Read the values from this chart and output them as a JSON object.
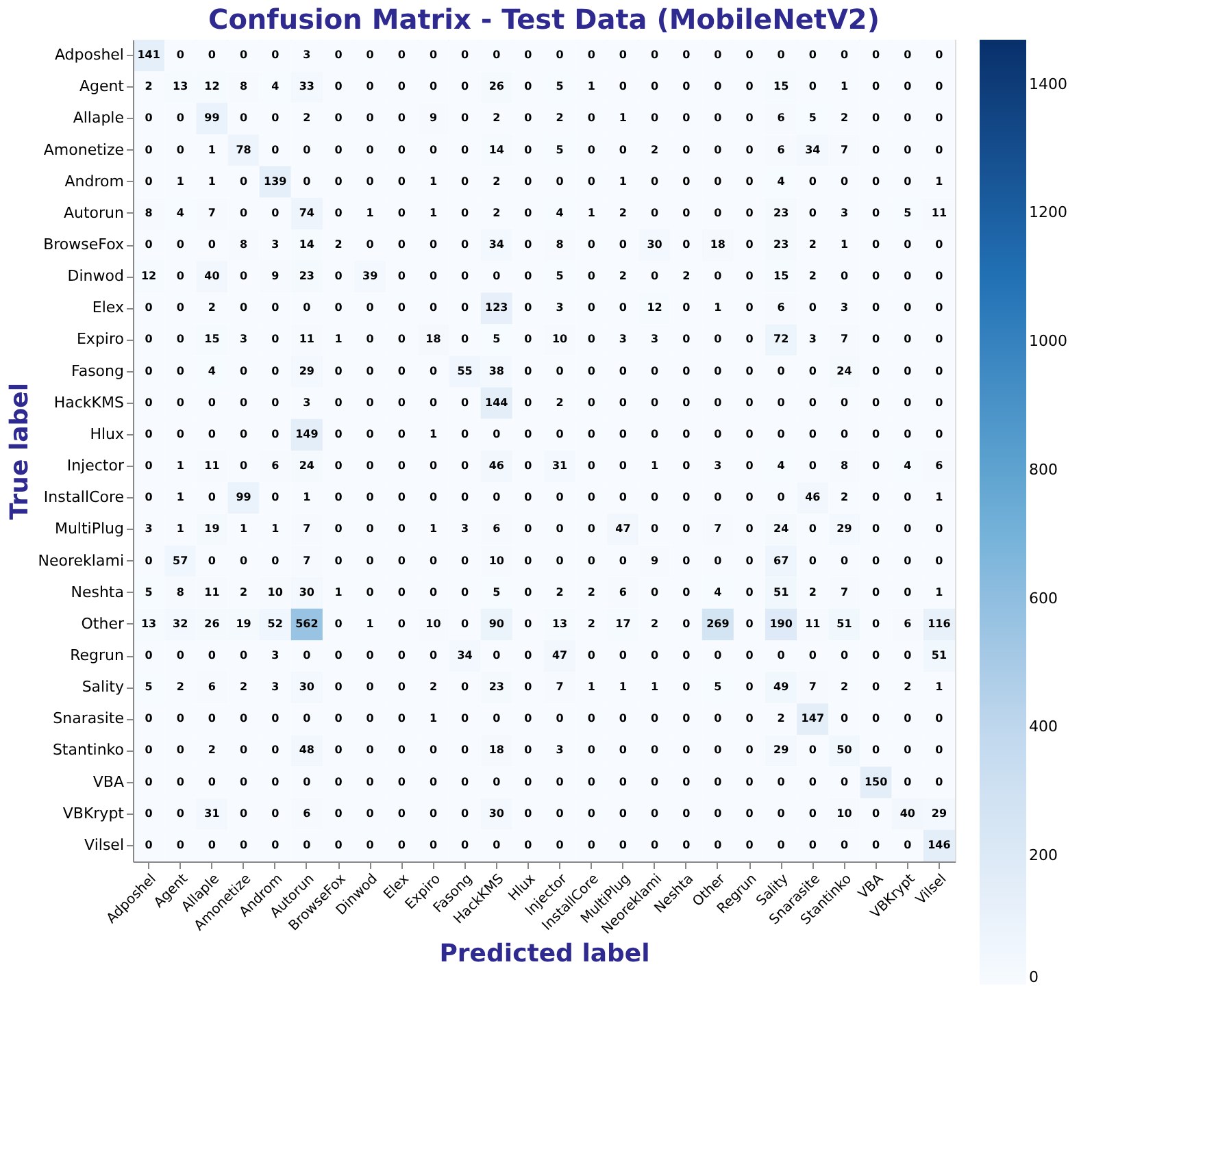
{
  "chart_data": {
    "type": "heatmap",
    "title": "Confusion Matrix - Test Data (MobileNetV2)",
    "xlabel": "Predicted label",
    "ylabel": "True label",
    "categories": [
      "Adposhel",
      "Agent",
      "Allaple",
      "Amonetize",
      "Androm",
      "Autorun",
      "BrowseFox",
      "Dinwod",
      "Elex",
      "Expiro",
      "Fasong",
      "HackKMS",
      "Hlux",
      "Injector",
      "InstallCore",
      "MultiPlug",
      "Neoreklami",
      "Neshta",
      "Other",
      "Regrun",
      "Sality",
      "Snarasite",
      "Stantinko",
      "VBA",
      "VBKrypt",
      "Vilsel"
    ],
    "y_categories": [
      "Adposhel",
      "Agent",
      "Allaple",
      "Amonetize",
      "Androm",
      "Autorun",
      "BrowseFox",
      "Dinwod",
      "Elex",
      "Expiro",
      "Fasong",
      "HackKMS",
      "Hlux",
      "Injector",
      "InstallCore",
      "MultiPlug",
      "Neoreklami",
      "Neshta",
      "Other",
      "Regrun",
      "Sality",
      "Snarasite",
      "Stantinko",
      "VBA",
      "VBKrypt",
      "Vilsel"
    ],
    "cells": [
      [
        141,
        0,
        0,
        0,
        0,
        3,
        0,
        0,
        0,
        0,
        0,
        0,
        0,
        0,
        0,
        0,
        0,
        0,
        0,
        0,
        0,
        0,
        0,
        0,
        0,
        0
      ],
      [
        2,
        13,
        12,
        8,
        4,
        33,
        0,
        0,
        0,
        0,
        0,
        26,
        0,
        5,
        1,
        0,
        0,
        0,
        0,
        0,
        15,
        0,
        1,
        0,
        0,
        0
      ],
      [
        0,
        0,
        99,
        0,
        0,
        2,
        0,
        0,
        0,
        9,
        0,
        2,
        0,
        2,
        0,
        1,
        0,
        0,
        0,
        0,
        6,
        5,
        2,
        0,
        0,
        0
      ],
      [
        0,
        0,
        1,
        78,
        0,
        0,
        0,
        0,
        0,
        0,
        0,
        14,
        0,
        5,
        0,
        0,
        2,
        0,
        0,
        0,
        6,
        34,
        7,
        0,
        0,
        0
      ],
      [
        0,
        1,
        1,
        0,
        139,
        0,
        0,
        0,
        0,
        1,
        0,
        2,
        0,
        0,
        0,
        1,
        0,
        0,
        0,
        0,
        4,
        0,
        0,
        0,
        0,
        1
      ],
      [
        8,
        4,
        7,
        0,
        0,
        74,
        0,
        1,
        0,
        1,
        0,
        2,
        0,
        4,
        1,
        2,
        0,
        0,
        0,
        0,
        23,
        0,
        3,
        0,
        5,
        11
      ],
      [
        0,
        0,
        0,
        8,
        3,
        14,
        2,
        0,
        0,
        0,
        0,
        34,
        0,
        8,
        0,
        0,
        30,
        0,
        18,
        0,
        23,
        2,
        1,
        0,
        0,
        0
      ],
      [
        12,
        0,
        40,
        0,
        9,
        23,
        0,
        39,
        0,
        0,
        0,
        0,
        0,
        5,
        0,
        2,
        0,
        2,
        0,
        0,
        15,
        2,
        0,
        0,
        0,
        0
      ],
      [
        0,
        0,
        2,
        0,
        0,
        0,
        0,
        0,
        0,
        0,
        0,
        123,
        0,
        3,
        0,
        0,
        12,
        0,
        1,
        0,
        6,
        0,
        3,
        0,
        0,
        0
      ],
      [
        0,
        0,
        15,
        3,
        0,
        11,
        1,
        0,
        0,
        18,
        0,
        5,
        0,
        10,
        0,
        3,
        3,
        0,
        0,
        0,
        72,
        3,
        7,
        0,
        0,
        0
      ],
      [
        0,
        0,
        4,
        0,
        0,
        29,
        0,
        0,
        0,
        0,
        55,
        38,
        0,
        0,
        0,
        0,
        0,
        0,
        0,
        0,
        0,
        0,
        24,
        0,
        0,
        0
      ],
      [
        0,
        0,
        0,
        0,
        0,
        3,
        0,
        0,
        0,
        0,
        0,
        144,
        0,
        2,
        0,
        0,
        0,
        0,
        0,
        0,
        0,
        0,
        0,
        0,
        0,
        0
      ],
      [
        0,
        0,
        0,
        0,
        0,
        149,
        0,
        0,
        0,
        1,
        0,
        0,
        0,
        0,
        0,
        0,
        0,
        0,
        0,
        0,
        0,
        0,
        0,
        0,
        0,
        0
      ],
      [
        0,
        1,
        11,
        0,
        6,
        24,
        0,
        0,
        0,
        0,
        0,
        46,
        0,
        31,
        0,
        0,
        1,
        0,
        3,
        0,
        4,
        0,
        8,
        0,
        4,
        6
      ],
      [
        0,
        1,
        0,
        99,
        0,
        1,
        0,
        0,
        0,
        0,
        0,
        0,
        0,
        0,
        0,
        0,
        0,
        0,
        0,
        0,
        0,
        46,
        2,
        0,
        0,
        1
      ],
      [
        3,
        1,
        19,
        1,
        1,
        7,
        0,
        0,
        0,
        1,
        3,
        6,
        0,
        0,
        0,
        47,
        0,
        0,
        7,
        0,
        24,
        0,
        29,
        0,
        0,
        0
      ],
      [
        0,
        57,
        0,
        0,
        0,
        7,
        0,
        0,
        0,
        0,
        0,
        10,
        0,
        0,
        0,
        0,
        9,
        0,
        0,
        0,
        67,
        0,
        0,
        0,
        0,
        0
      ],
      [
        5,
        8,
        11,
        2,
        10,
        30,
        1,
        0,
        0,
        0,
        0,
        5,
        0,
        2,
        2,
        6,
        0,
        0,
        4,
        0,
        51,
        2,
        7,
        0,
        0,
        1
      ],
      [
        13,
        32,
        26,
        19,
        52,
        562,
        0,
        1,
        0,
        10,
        0,
        90,
        0,
        13,
        2,
        17,
        2,
        0,
        269,
        0,
        190,
        11,
        51,
        0,
        6,
        116
      ],
      [
        0,
        0,
        0,
        0,
        3,
        0,
        0,
        0,
        0,
        0,
        34,
        0,
        0,
        47,
        0,
        0,
        0,
        0,
        0,
        0,
        0,
        0,
        0,
        0,
        0,
        51
      ],
      [
        5,
        2,
        6,
        2,
        3,
        30,
        0,
        0,
        0,
        2,
        0,
        23,
        0,
        7,
        1,
        1,
        1,
        0,
        5,
        0,
        49,
        7,
        2,
        0,
        2,
        1
      ],
      [
        0,
        0,
        0,
        0,
        0,
        0,
        0,
        0,
        0,
        1,
        0,
        0,
        0,
        0,
        0,
        0,
        0,
        0,
        0,
        0,
        2,
        147,
        0,
        0,
        0,
        0
      ],
      [
        0,
        0,
        2,
        0,
        0,
        48,
        0,
        0,
        0,
        0,
        0,
        18,
        0,
        3,
        0,
        0,
        0,
        0,
        0,
        0,
        29,
        0,
        50,
        0,
        0,
        0
      ],
      [
        0,
        0,
        0,
        0,
        0,
        0,
        0,
        0,
        0,
        0,
        0,
        0,
        0,
        0,
        0,
        0,
        0,
        0,
        0,
        0,
        0,
        0,
        0,
        150,
        0,
        0
      ],
      [
        0,
        0,
        31,
        0,
        0,
        6,
        0,
        0,
        0,
        0,
        0,
        30,
        0,
        0,
        0,
        0,
        0,
        0,
        0,
        0,
        0,
        0,
        10,
        0,
        40,
        29
      ],
      [
        0,
        0,
        0,
        0,
        0,
        0,
        0,
        0,
        0,
        0,
        0,
        0,
        0,
        0,
        0,
        0,
        0,
        0,
        0,
        0,
        0,
        0,
        0,
        0,
        0,
        146
      ]
    ],
    "clim": [
      0,
      1470
    ],
    "cticks": [
      0,
      200,
      400,
      600,
      800,
      1000,
      1200,
      1400
    ],
    "data_labels": true
  }
}
